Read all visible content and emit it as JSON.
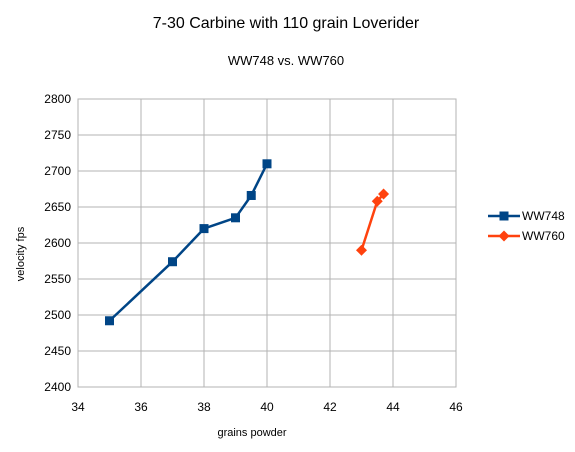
{
  "chart_data": {
    "type": "line",
    "title": "7-30 Carbine with 110 grain Loverider",
    "subtitle": "WW748 vs. WW760",
    "xlabel": "grains powder",
    "ylabel": "velocity fps",
    "xlim": [
      34,
      46
    ],
    "ylim": [
      2400,
      2800
    ],
    "xticks": [
      34,
      36,
      38,
      40,
      42,
      44,
      46
    ],
    "yticks": [
      2400,
      2450,
      2500,
      2550,
      2600,
      2650,
      2700,
      2750,
      2800
    ],
    "grid": true,
    "legend_position": "right",
    "series": [
      {
        "name": "WW748",
        "color": "#004586",
        "marker": "square",
        "x": [
          35,
          37,
          38,
          39,
          39.5,
          40
        ],
        "y": [
          2492,
          2574,
          2620,
          2635,
          2666,
          2710
        ]
      },
      {
        "name": "WW760",
        "color": "#ff420e",
        "marker": "diamond",
        "x": [
          43,
          43.5,
          43.7
        ],
        "y": [
          2590,
          2658,
          2668
        ]
      }
    ]
  }
}
